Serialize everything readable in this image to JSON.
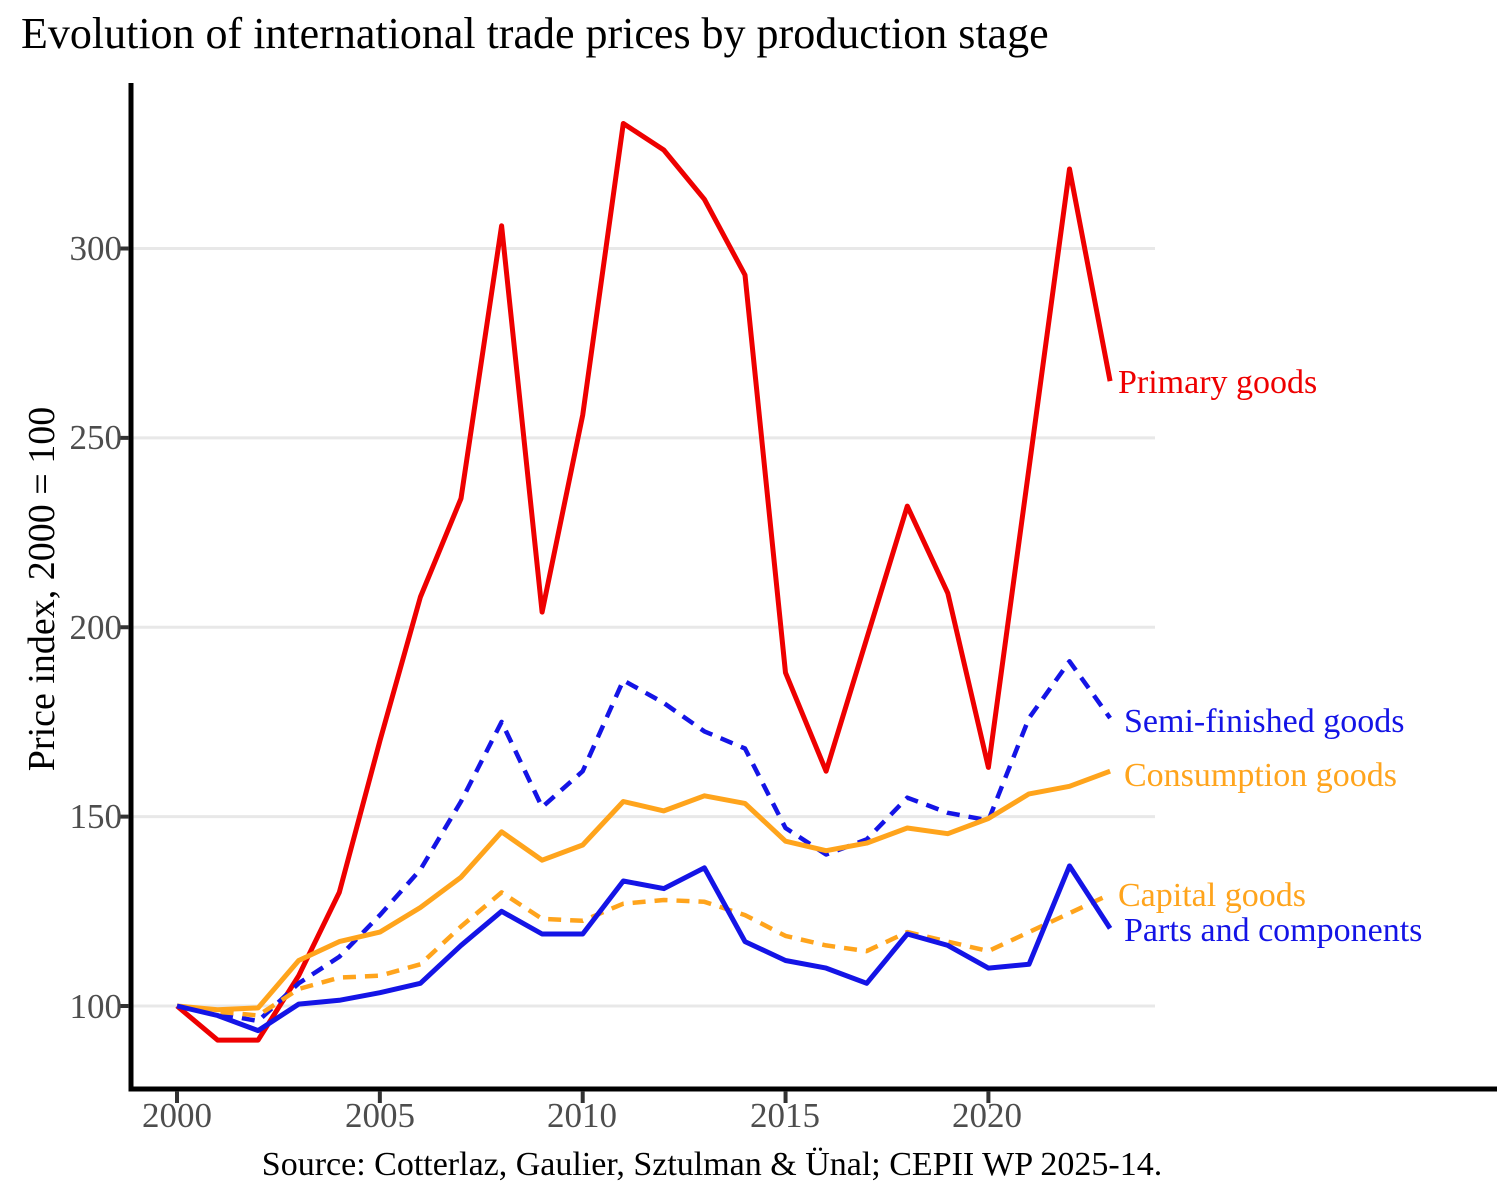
{
  "header": {
    "title": "Evolution of international trade prices by production stage"
  },
  "chart_data": {
    "type": "line",
    "title": "Evolution of international trade prices by production stage",
    "xlabel": "",
    "ylabel": "Price index, 2000 = 100",
    "source": "Source: Cotterlaz, Gaulier, Sztulman & Ünal; CEPII WP 2025-14.",
    "x": [
      2000,
      2001,
      2002,
      2003,
      2004,
      2005,
      2006,
      2007,
      2008,
      2009,
      2010,
      2011,
      2012,
      2013,
      2014,
      2015,
      2016,
      2017,
      2018,
      2019,
      2020,
      2021,
      2022,
      2023
    ],
    "x_ticks": [
      2000,
      2005,
      2010,
      2015,
      2020
    ],
    "y_ticks": [
      100,
      150,
      200,
      250,
      300
    ],
    "ylim": [
      78,
      342
    ],
    "xlim": [
      1998.8,
      2032.5
    ],
    "grid": "horizontal-only",
    "legend_position": "right-of-line-endpoints",
    "colors": {
      "red": "#ee0000",
      "blue": "#1414e6",
      "orange": "#ffa41c",
      "gridline": "#e8e8e8",
      "axis": "#000000",
      "tick_text": "#4d4d4d"
    },
    "series": [
      {
        "name": "primary-goods",
        "label": "Primary goods",
        "color": "#ee0000",
        "line_style": "solid",
        "values": [
          100,
          91,
          91,
          108,
          130,
          170,
          208,
          234,
          306,
          204,
          256,
          333,
          326,
          313,
          293,
          188,
          162,
          197,
          232,
          209,
          163,
          242,
          321,
          265
        ]
      },
      {
        "name": "semi-finished-goods",
        "label": "Semi-finished goods",
        "color": "#1414e6",
        "line_style": "dashed",
        "values": [
          100,
          98,
          96,
          106,
          113,
          124,
          136,
          154,
          175,
          152.5,
          162,
          186,
          180,
          172.5,
          168,
          147,
          140,
          144,
          155,
          151,
          149,
          176,
          191,
          176
        ]
      },
      {
        "name": "consumption-goods",
        "label": "Consumption goods",
        "color": "#ffa41c",
        "line_style": "solid",
        "values": [
          100,
          99,
          99.5,
          112,
          117,
          119.5,
          126,
          134,
          146,
          138.5,
          142.5,
          154,
          151.5,
          155.5,
          153.5,
          143.5,
          141,
          143,
          147,
          145.5,
          149.5,
          156,
          158,
          162
        ]
      },
      {
        "name": "capital-goods",
        "label": "Capital goods",
        "color": "#ffa41c",
        "line_style": "dashed",
        "values": [
          100,
          98.5,
          97.5,
          104.5,
          107.5,
          108,
          111,
          121,
          130,
          123,
          122.5,
          127,
          128,
          127.5,
          124,
          118.5,
          116,
          114.5,
          119.5,
          117,
          114.5,
          119.5,
          124.5,
          129.5
        ]
      },
      {
        "name": "parts-and-components",
        "label": "Parts and components",
        "color": "#1414e6",
        "line_style": "solid",
        "values": [
          100,
          97.5,
          93.5,
          100.5,
          101.5,
          103.5,
          106,
          116,
          125,
          119,
          119,
          133,
          131,
          136.5,
          117,
          112,
          110,
          106,
          119,
          116,
          110,
          111,
          137,
          120.5
        ]
      }
    ]
  }
}
